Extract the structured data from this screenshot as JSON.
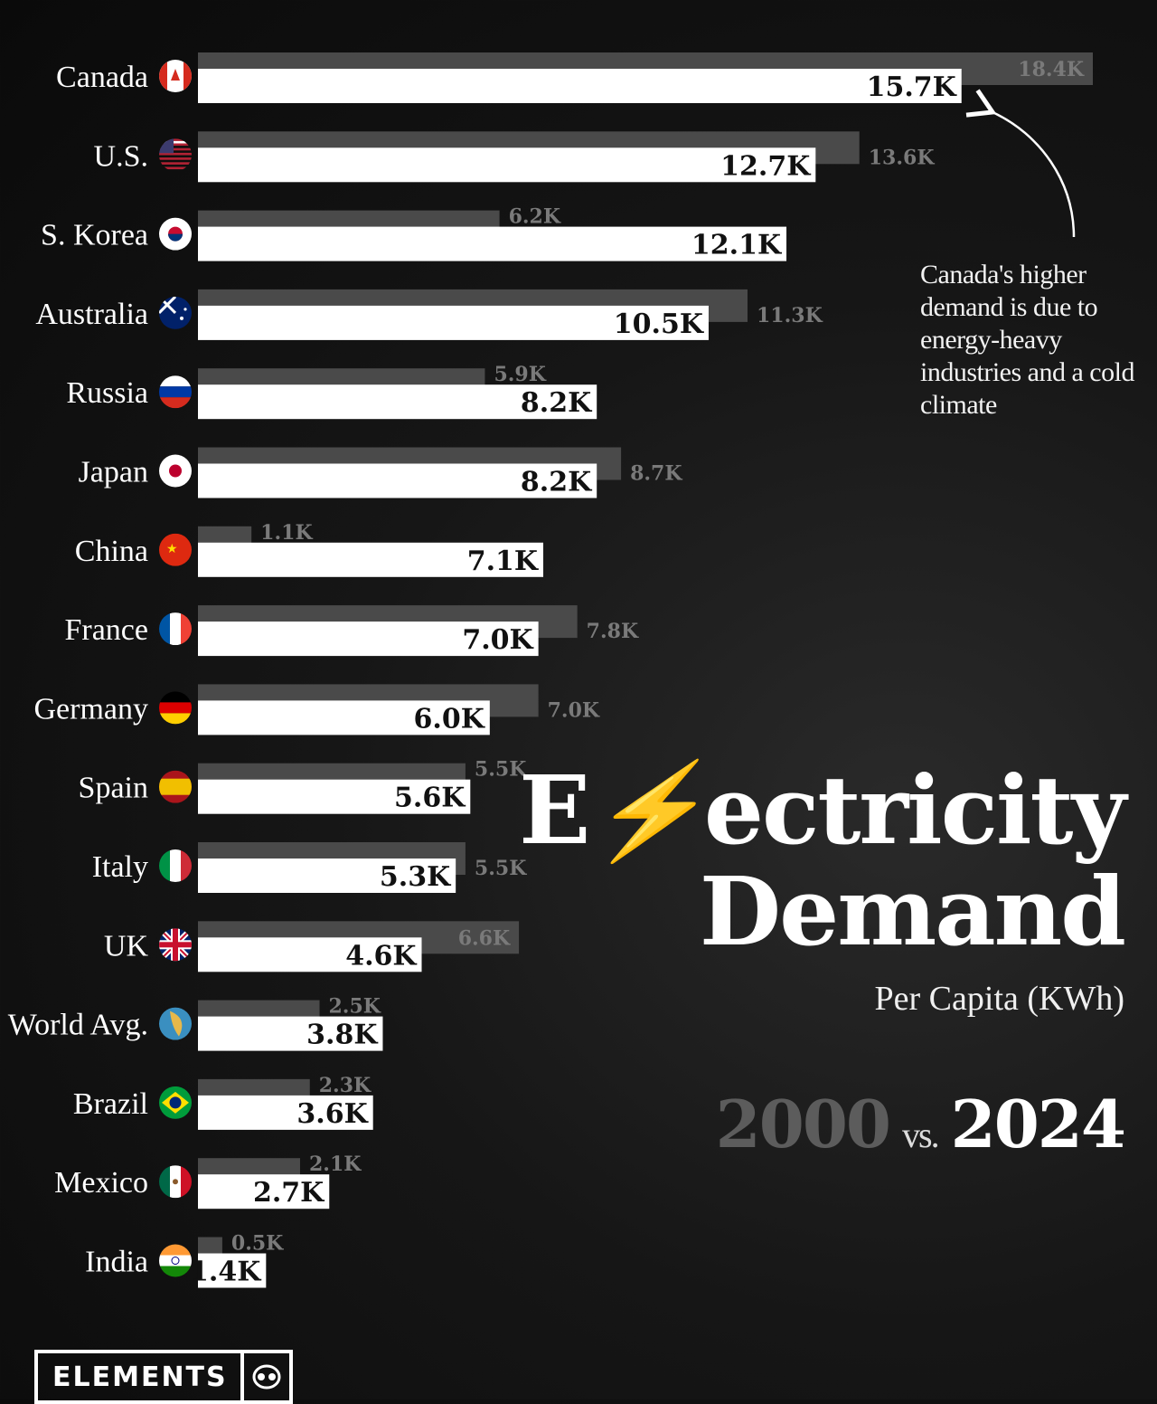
{
  "chart_data": {
    "type": "bar",
    "title": "Electricity Demand",
    "subtitle": "Per Capita (KWh)",
    "series": [
      {
        "name": "2000",
        "color": "#4a4a4a",
        "values": [
          18.4,
          13.6,
          6.2,
          11.3,
          5.9,
          8.7,
          1.1,
          7.8,
          7.0,
          5.5,
          5.5,
          6.6,
          2.5,
          2.3,
          2.1,
          0.5
        ],
        "labels": [
          "18.4K",
          "13.6K",
          "6.2K",
          "11.3K",
          "5.9K",
          "8.7K",
          "1.1K",
          "7.8K",
          "7.0K",
          "5.5K",
          "5.5K",
          "6.6K",
          "2.5K",
          "2.3K",
          "2.1K",
          "0.5K"
        ]
      },
      {
        "name": "2024",
        "color": "#ffffff",
        "values": [
          15.7,
          12.7,
          12.1,
          10.5,
          8.2,
          8.2,
          7.1,
          7.0,
          6.0,
          5.6,
          5.3,
          4.6,
          3.8,
          3.6,
          2.7,
          1.4
        ],
        "labels": [
          "15.7K",
          "12.7K",
          "12.1K",
          "10.5K",
          "8.2K",
          "8.2K",
          "7.1K",
          "7.0K",
          "6.0K",
          "5.6K",
          "5.3K",
          "4.6K",
          "3.8K",
          "3.6K",
          "2.7K",
          "1.4K"
        ]
      }
    ],
    "categories": [
      "Canada",
      "U.S.",
      "S. Korea",
      "Australia",
      "Russia",
      "Japan",
      "China",
      "France",
      "Germany",
      "Spain",
      "Italy",
      "UK",
      "World Avg.",
      "Brazil",
      "Mexico",
      "India"
    ],
    "flags": [
      "canada-flag",
      "us-flag",
      "south-korea-flag",
      "australia-flag",
      "russia-flag",
      "japan-flag",
      "china-flag",
      "france-flag",
      "germany-flag",
      "spain-flag",
      "italy-flag",
      "uk-flag",
      "world-globe",
      "brazil-flag",
      "mexico-flag",
      "india-flag"
    ],
    "xlim": [
      0,
      18.4
    ],
    "unit": "KWh per capita (thousands)"
  },
  "annotation": "Canada's higher demand is due to energy-heavy industries and a cold climate",
  "title_line1_a": "E",
  "title_line1_b": "ectricity",
  "title_line2": "Demand",
  "subtitle": "Per Capita (KWh)",
  "year_a": "2000",
  "vs": "vs.",
  "year_b": "2024",
  "brand": "ELEMENTS"
}
